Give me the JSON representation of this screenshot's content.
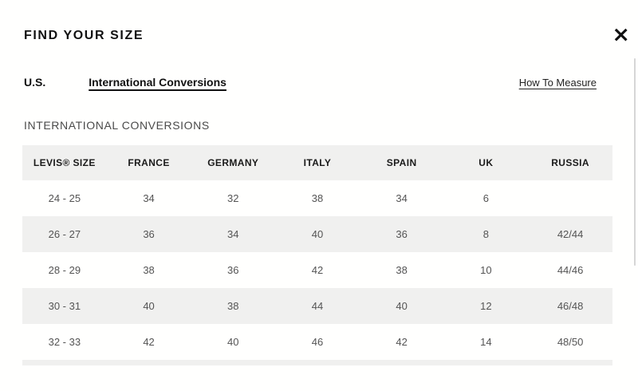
{
  "modal": {
    "title": "FIND YOUR SIZE"
  },
  "icons": {
    "close": "×"
  },
  "tabs": [
    {
      "label": "U.S.",
      "active": false
    },
    {
      "label": "International Conversions",
      "active": true
    }
  ],
  "links": {
    "how_to_measure": "How To Measure"
  },
  "section": {
    "heading": "INTERNATIONAL CONVERSIONS"
  },
  "table": {
    "columns": [
      "LEVIS® SIZE",
      "FRANCE",
      "GERMANY",
      "ITALY",
      "SPAIN",
      "UK",
      "RUSSIA"
    ],
    "rows": [
      [
        "24 - 25",
        "34",
        "32",
        "38",
        "34",
        "6",
        ""
      ],
      [
        "26 - 27",
        "36",
        "34",
        "40",
        "36",
        "8",
        "42/44"
      ],
      [
        "28 - 29",
        "38",
        "36",
        "42",
        "38",
        "10",
        "44/46"
      ],
      [
        "30 - 31",
        "40",
        "38",
        "44",
        "40",
        "12",
        "46/48"
      ],
      [
        "32 - 33",
        "42",
        "40",
        "46",
        "42",
        "14",
        "48/50"
      ]
    ]
  },
  "colors": {
    "row_stripe": "#f0f0ef",
    "header_bg": "#f0f0ef",
    "text_primary": "#111111",
    "text_cell": "#545454",
    "scrollbar": "#d6d6d6"
  }
}
